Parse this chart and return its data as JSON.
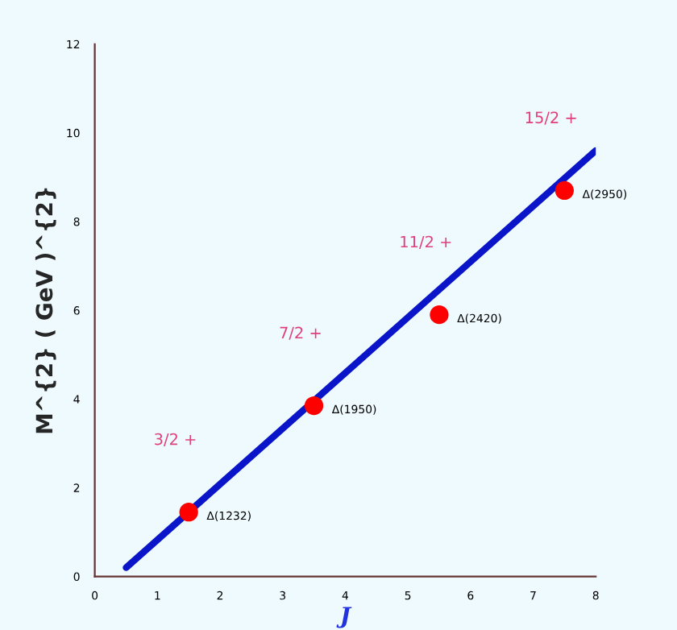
{
  "chart_data": {
    "type": "line",
    "xlabel": "J",
    "ylabel": "M^{2} ( GeV )^{2}",
    "xlim": [
      0,
      8
    ],
    "ylim": [
      0,
      12
    ],
    "xticks": [
      0,
      1,
      2,
      3,
      4,
      5,
      6,
      7,
      8
    ],
    "yticks": [
      0,
      2,
      4,
      6,
      8,
      10,
      12
    ],
    "grid": false,
    "legend": false,
    "series": [
      {
        "color": "#0a14c8",
        "x": [
          0.5,
          8.0
        ],
        "values": [
          0.2,
          9.6
        ]
      },
      {
        "type": "scatter",
        "color": "#ff0000",
        "marker": "circle",
        "x": [
          1.5,
          3.5,
          5.5,
          7.5
        ],
        "values": [
          1.45,
          3.85,
          5.9,
          8.7
        ]
      }
    ],
    "annotations": [
      "3/2 +",
      "7/2 +",
      "11/2 +",
      "15/2 +",
      {
        "text": "Δ(1232)",
        "x": 1.5,
        "y": 1.45
      },
      {
        "text": "Δ(1950)",
        "x": 3.5,
        "y": 3.85
      },
      {
        "text": "Δ(2420)",
        "x": 5.5,
        "y": 5.9
      },
      {
        "text": "Δ(2950)",
        "x": 7.5,
        "y": 8.7
      }
    ]
  }
}
